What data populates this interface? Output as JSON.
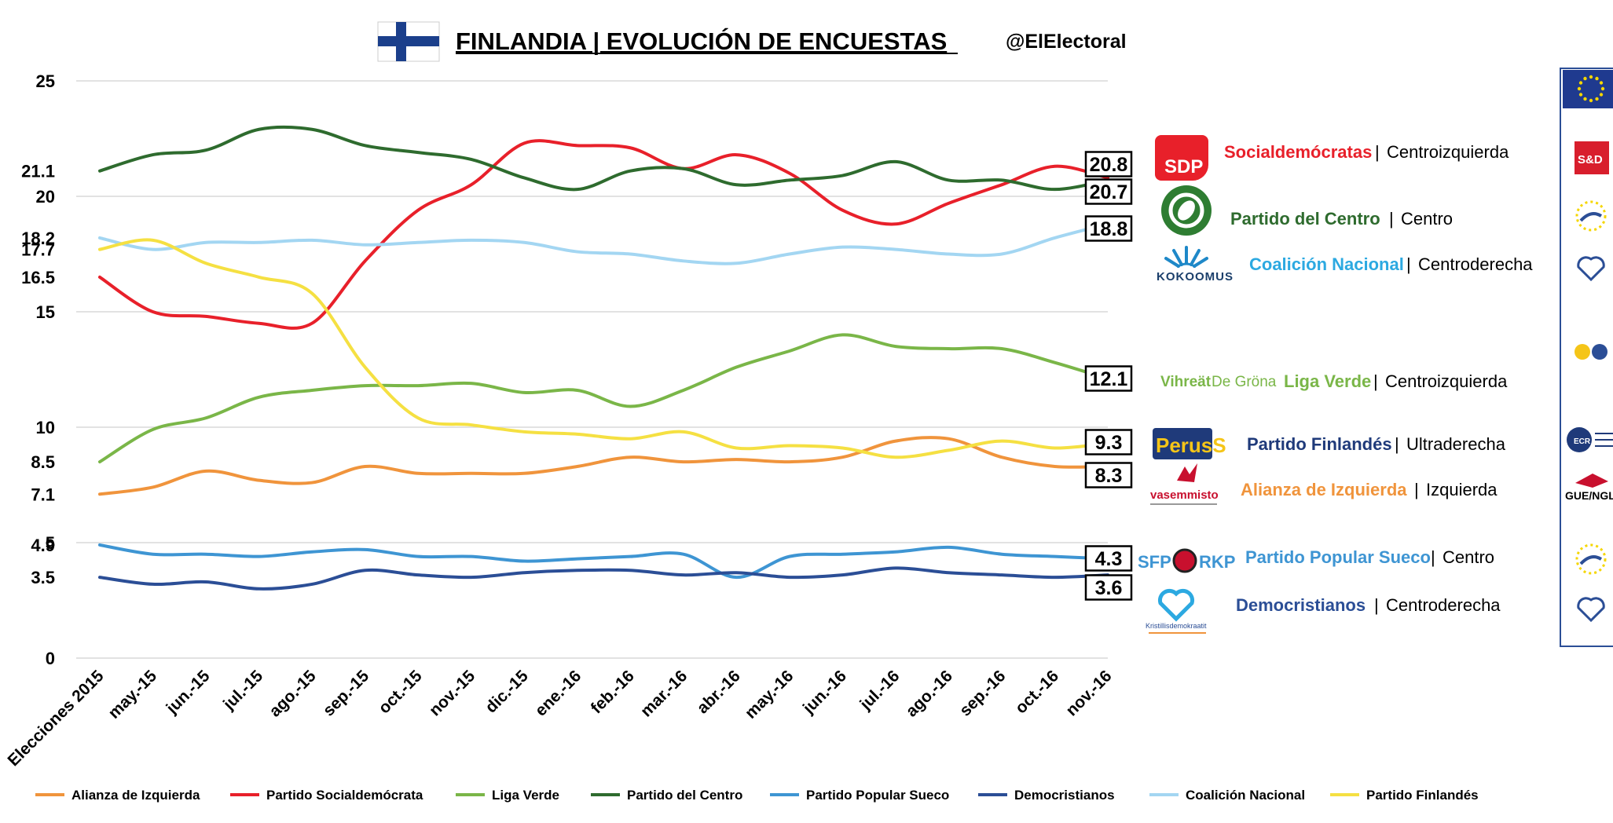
{
  "header": {
    "title": "FINLANDIA | EVOLUCIÓN DE ENCUESTAS",
    "handle": "@ElElectoral"
  },
  "chart_data": {
    "type": "line",
    "x": [
      "Elecciones 2015",
      "may.-15",
      "jun.-15",
      "jul.-15",
      "ago.-15",
      "sep.-15",
      "oct.-15",
      "nov.-15",
      "dic.-15",
      "ene.-16",
      "feb.-16",
      "mar.-16",
      "abr.-16",
      "may.-16",
      "jun.-16",
      "jul.-16",
      "ago.-16",
      "sep.-16",
      "oct.-16",
      "nov.-16"
    ],
    "ylim": [
      0,
      25
    ],
    "y_ticks": [
      "0",
      "3.5",
      "4.9",
      "5",
      "7.1",
      "8.5",
      "10",
      "15",
      "16.5",
      "17.7",
      "18.2",
      "20",
      "21.1",
      "25"
    ],
    "grid": true,
    "legend_position": "bottom",
    "series": [
      {
        "name": "Alianza de Izquierda",
        "color": "#F0943C",
        "values": [
          7.1,
          7.4,
          8.1,
          7.7,
          7.6,
          8.3,
          8.0,
          8.0,
          8.0,
          8.3,
          8.7,
          8.5,
          8.6,
          8.5,
          8.7,
          9.4,
          9.5,
          8.7,
          8.3,
          8.3
        ]
      },
      {
        "name": "Partido Socialdemócrata",
        "color": "#E8202A",
        "values": [
          16.5,
          15.0,
          14.8,
          14.5,
          14.5,
          17.2,
          19.4,
          20.5,
          22.3,
          22.2,
          22.1,
          21.2,
          21.8,
          21.0,
          19.4,
          18.8,
          19.7,
          20.5,
          21.3,
          20.8
        ]
      },
      {
        "name": "Liga Verde",
        "color": "#7AB648",
        "values": [
          8.5,
          9.9,
          10.4,
          11.3,
          11.6,
          11.8,
          11.8,
          11.9,
          11.5,
          11.6,
          10.9,
          11.6,
          12.6,
          13.3,
          14.0,
          13.5,
          13.4,
          13.4,
          12.8,
          12.1
        ]
      },
      {
        "name": "Partido del Centro",
        "color": "#2E6B2E",
        "values": [
          21.1,
          21.8,
          22.0,
          22.9,
          22.9,
          22.2,
          21.9,
          21.6,
          20.8,
          20.3,
          21.1,
          21.2,
          20.5,
          20.7,
          20.9,
          21.5,
          20.7,
          20.7,
          20.3,
          20.7
        ]
      },
      {
        "name": "Partido Popular Sueco",
        "color": "#3E95D3",
        "values": [
          4.9,
          4.5,
          4.5,
          4.4,
          4.6,
          4.7,
          4.4,
          4.4,
          4.2,
          4.3,
          4.4,
          4.5,
          3.5,
          4.4,
          4.5,
          4.6,
          4.8,
          4.5,
          4.4,
          4.3
        ]
      },
      {
        "name": "Democristianos",
        "color": "#2B4E96",
        "values": [
          3.5,
          3.2,
          3.3,
          3.0,
          3.2,
          3.8,
          3.6,
          3.5,
          3.7,
          3.8,
          3.8,
          3.6,
          3.7,
          3.5,
          3.6,
          3.9,
          3.7,
          3.6,
          3.5,
          3.6
        ]
      },
      {
        "name": "Coalición Nacional",
        "color": "#A3D6F2",
        "values": [
          18.2,
          17.7,
          18.0,
          18.0,
          18.1,
          17.9,
          18.0,
          18.1,
          18.0,
          17.6,
          17.5,
          17.2,
          17.1,
          17.5,
          17.8,
          17.7,
          17.5,
          17.5,
          18.2,
          18.8
        ]
      },
      {
        "name": "Partido Finlandés",
        "color": "#F5E042",
        "values": [
          17.7,
          18.1,
          17.1,
          16.5,
          15.8,
          12.6,
          10.4,
          10.1,
          9.8,
          9.7,
          9.5,
          9.8,
          9.1,
          9.2,
          9.1,
          8.7,
          9.0,
          9.4,
          9.1,
          9.3
        ]
      }
    ],
    "end_labels": [
      {
        "text": "20.8",
        "color": "#E8202A"
      },
      {
        "text": "20.7",
        "color": "#2E6B2E"
      },
      {
        "text": "18.8",
        "color": "#A3D6F2"
      },
      {
        "text": "12.1",
        "color": "#7AB648"
      },
      {
        "text": "9.3",
        "color": "#F5E042"
      },
      {
        "text": "8.3",
        "color": "#F0943C"
      },
      {
        "text": "4.3",
        "color": "#3E95D3"
      },
      {
        "text": "3.6",
        "color": "#2B4E96"
      }
    ]
  },
  "parties": [
    {
      "name": "Socialdemócratas",
      "ideology": "Centroizquierda",
      "color": "#E8202A",
      "logo_text": "SDP",
      "logo": "sdp-logo",
      "eu_group": "S&D"
    },
    {
      "name": "Partido del Centro",
      "ideology": "Centro",
      "color": "#2E6B2E",
      "logo_text": "",
      "logo": "keskusta-clover-logo",
      "eu_group": "alde-stars-icon"
    },
    {
      "name": "Coalición Nacional",
      "ideology": "Centroderecha",
      "color": "#2CA9E1",
      "logo_text": "KOKOOMUS",
      "logo": "kokoomus-logo",
      "eu_group": "epp-heart-icon"
    },
    {
      "name": "Liga Verde",
      "ideology": "Centroizquierda",
      "color": "#7AB648",
      "logo_text_a": "Vihreät",
      "logo_text_b": "De Gröna",
      "logo": "vihreat-logo",
      "eu_group": "greens-efa-icon"
    },
    {
      "name": "Partido Finlandés",
      "ideology": "Ultraderecha",
      "color": "#1F3A7A",
      "logo_text": "PerusS",
      "logo": "perussuomalaiset-logo",
      "eu_group": "ecr-icon"
    },
    {
      "name": "Alianza de Izquierda",
      "ideology": "Izquierda",
      "color": "#F0943C",
      "logo_text": "vasemmisto",
      "logo": "vasemmisto-logo",
      "eu_group": "GUE/NGL"
    },
    {
      "name": "Partido Popular Sueco",
      "ideology": "Centro",
      "color": "#3E95D3",
      "logo_text_a": "SFP",
      "logo_text_b": "RKP",
      "logo": "sfp-rkp-logo",
      "eu_group": "alde-stars-icon"
    },
    {
      "name": "Democristianos",
      "ideology": "Centroderecha",
      "color": "#2B4E96",
      "logo_text": "Kristillisdemokraatit",
      "logo": "kd-heart-logo",
      "eu_group": "epp-heart-icon"
    }
  ],
  "icons": {
    "flag": "finland-flag-icon",
    "eu": "eu-flag-icon"
  }
}
